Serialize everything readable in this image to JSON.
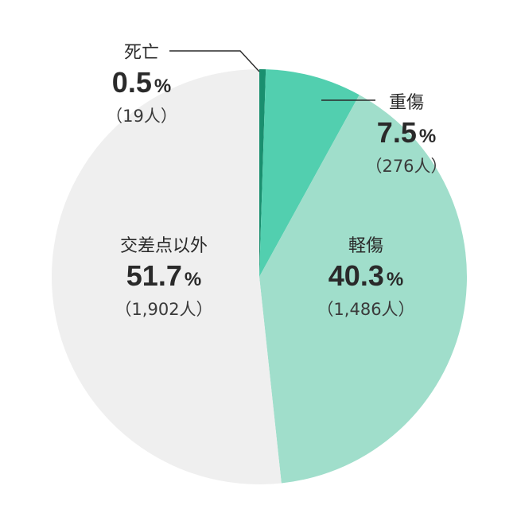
{
  "chart_data": {
    "type": "pie",
    "title": "",
    "unit": "%",
    "slices": [
      {
        "label": "死亡",
        "value": 0.5,
        "value_text": "0.5",
        "count_text": "（19人）",
        "color": "#1a8f6f"
      },
      {
        "label": "重傷",
        "value": 7.5,
        "value_text": "7.5",
        "count_text": "（276人）",
        "color": "#52cfaf"
      },
      {
        "label": "軽傷",
        "value": 40.3,
        "value_text": "40.3",
        "count_text": "（1,486人）",
        "color": "#a0decb"
      },
      {
        "label": "交差点以外",
        "value": 51.7,
        "value_text": "51.7",
        "count_text": "（1,902人）",
        "color": "#efefef"
      }
    ]
  }
}
